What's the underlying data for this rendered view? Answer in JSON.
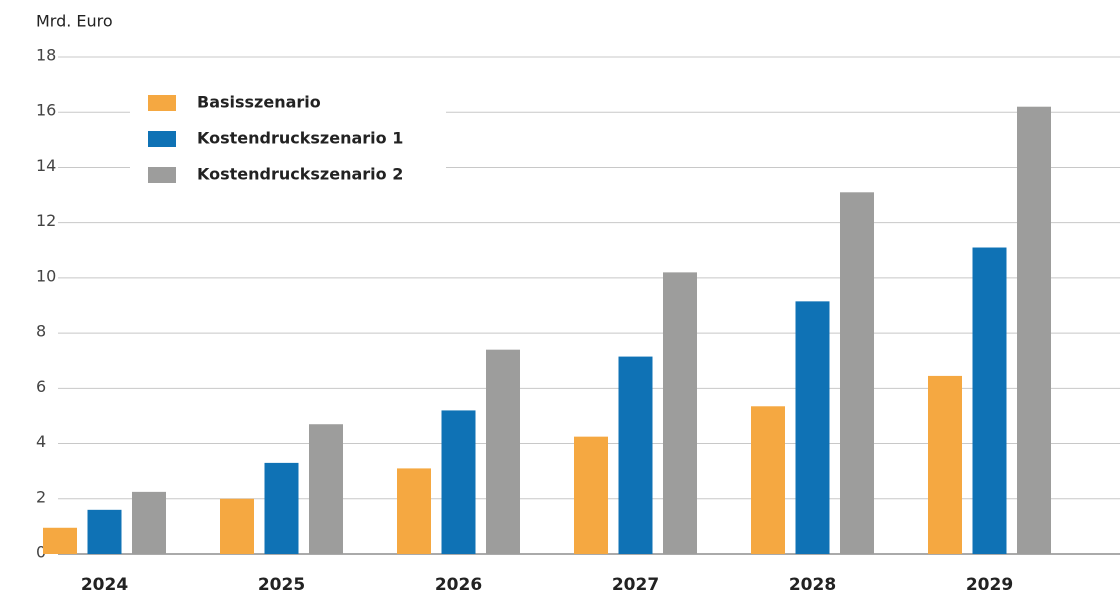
{
  "chart_data": {
    "type": "bar",
    "y_axis_label": "Mrd. Euro",
    "categories": [
      "2024",
      "2025",
      "2026",
      "2027",
      "2028",
      "2029"
    ],
    "series": [
      {
        "name": "Basisszenario",
        "color": "#f5a841",
        "values": [
          0.95,
          2.0,
          3.1,
          4.25,
          5.35,
          6.45
        ]
      },
      {
        "name": "Kostendruckszenario 1",
        "color": "#0f72b5",
        "values": [
          1.6,
          3.3,
          5.2,
          7.15,
          9.15,
          11.1
        ]
      },
      {
        "name": "Kostendruckszenario 2",
        "color": "#9d9d9c",
        "values": [
          2.25,
          4.7,
          7.4,
          10.2,
          13.1,
          16.2
        ]
      }
    ],
    "ylim": [
      0,
      18
    ],
    "yticks": [
      0,
      2,
      4,
      6,
      8,
      10,
      12,
      14,
      16,
      18
    ],
    "grid": true,
    "legend": "upper left"
  }
}
